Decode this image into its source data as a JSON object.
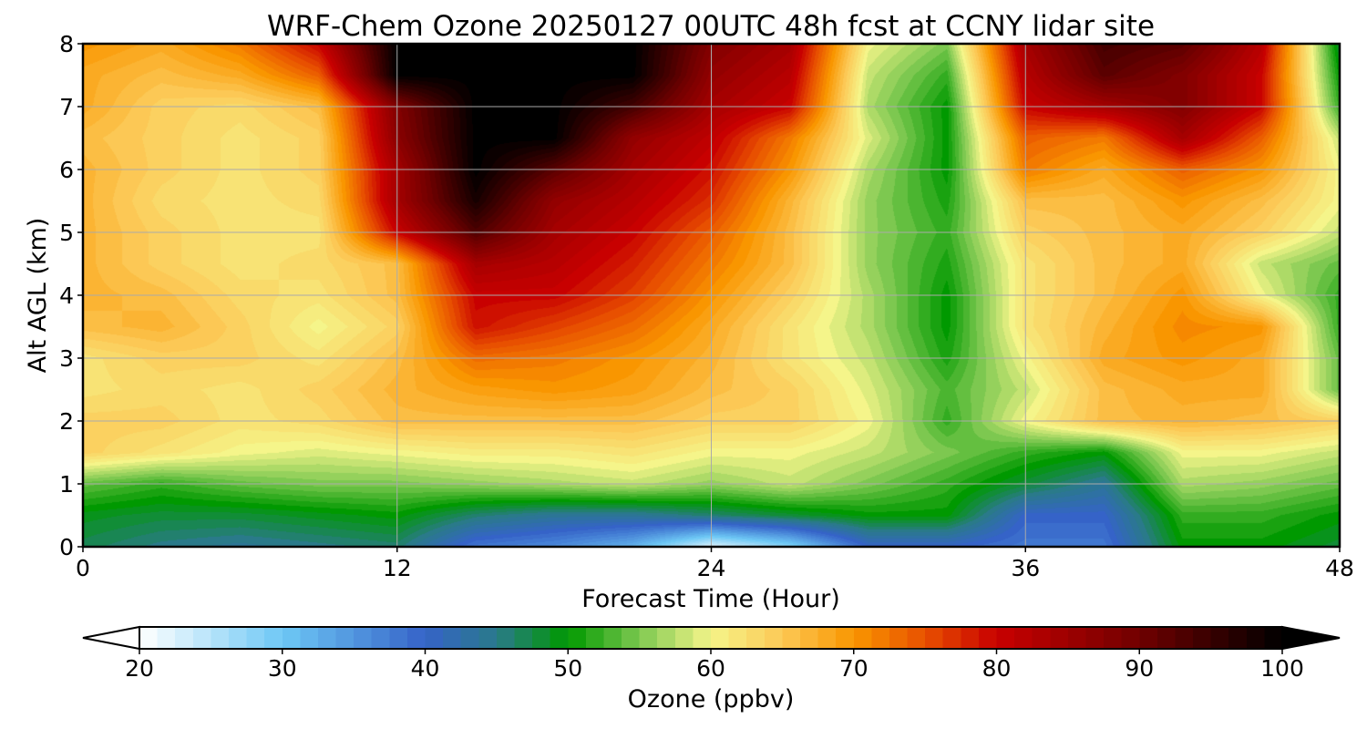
{
  "chart_data": {
    "type": "heatmap",
    "title": "WRF-Chem Ozone  20250127 00UTC 48h fcst at CCNY lidar site",
    "xlabel": "Forecast Time (Hour)",
    "ylabel": "Alt AGL (km)",
    "xlim": [
      0,
      48
    ],
    "ylim": [
      0,
      8
    ],
    "xticks": [
      0,
      12,
      24,
      36,
      48
    ],
    "yticks": [
      0,
      1,
      2,
      3,
      4,
      5,
      6,
      7,
      8
    ],
    "grid": true,
    "colorbar": {
      "label": "Ozone  (ppbv)",
      "ticks": [
        20,
        30,
        40,
        50,
        60,
        70,
        80,
        90,
        100
      ],
      "range": [
        20,
        100
      ],
      "extend": "both",
      "orientation": "horizontal",
      "placement": "bottom",
      "colors": [
        {
          "value": 20,
          "color": "#ffffff"
        },
        {
          "value": 30,
          "color": "#6ec8f5"
        },
        {
          "value": 40,
          "color": "#3563c8"
        },
        {
          "value": 45,
          "color": "#2a7a8a"
        },
        {
          "value": 50,
          "color": "#009900"
        },
        {
          "value": 55,
          "color": "#7dc850"
        },
        {
          "value": 60,
          "color": "#f5f58a"
        },
        {
          "value": 65,
          "color": "#fcc855"
        },
        {
          "value": 70,
          "color": "#f99600"
        },
        {
          "value": 75,
          "color": "#e85000"
        },
        {
          "value": 80,
          "color": "#c80000"
        },
        {
          "value": 90,
          "color": "#700000"
        },
        {
          "value": 100,
          "color": "#000000"
        }
      ]
    },
    "x": [
      0,
      3,
      6,
      9,
      12,
      15,
      18,
      21,
      24,
      27,
      30,
      33,
      36,
      39,
      42,
      45,
      48
    ],
    "y": [
      0,
      0.5,
      1,
      1.5,
      2,
      2.5,
      3,
      3.5,
      4,
      4.5,
      5,
      5.5,
      6,
      6.5,
      7,
      7.5,
      8
    ],
    "z": [
      [
        47,
        45,
        44,
        45,
        46,
        38,
        36,
        32,
        22,
        28,
        40,
        40,
        38,
        38,
        50,
        50,
        48
      ],
      [
        49,
        48,
        48,
        49,
        50,
        46,
        44,
        44,
        46,
        48,
        50,
        50,
        40,
        40,
        52,
        52,
        50
      ],
      [
        54,
        52,
        54,
        55,
        55,
        56,
        57,
        58,
        56,
        58,
        55,
        52,
        48,
        44,
        57,
        56,
        54
      ],
      [
        64,
        62,
        60,
        59,
        60,
        61,
        61,
        62,
        60,
        60,
        58,
        55,
        52,
        50,
        60,
        60,
        58
      ],
      [
        64,
        64,
        62,
        63,
        66,
        66,
        66,
        66,
        64,
        64,
        60,
        52,
        60,
        66,
        67,
        66,
        64
      ],
      [
        62,
        63,
        62,
        64,
        67,
        69,
        70,
        69,
        66,
        64,
        59,
        53,
        58,
        66,
        68,
        68,
        54
      ],
      [
        62,
        64,
        64,
        62,
        66,
        73,
        72,
        70,
        67,
        62,
        58,
        51,
        60,
        68,
        70,
        68,
        54
      ],
      [
        66,
        67,
        64,
        60,
        64,
        79,
        76,
        73,
        68,
        62,
        57,
        50,
        62,
        67,
        71,
        70,
        52
      ],
      [
        67,
        66,
        63,
        62,
        66,
        80,
        80,
        76,
        70,
        64,
        57,
        50,
        62,
        66,
        70,
        60,
        52
      ],
      [
        67,
        64,
        62,
        63,
        66,
        84,
        82,
        78,
        72,
        66,
        56,
        51,
        62,
        66,
        68,
        58,
        54
      ],
      [
        67,
        64,
        62,
        62,
        80,
        93,
        84,
        80,
        74,
        66,
        56,
        52,
        64,
        66,
        68,
        64,
        58
      ],
      [
        67,
        63,
        62,
        63,
        84,
        98,
        86,
        82,
        77,
        67,
        56,
        51,
        66,
        66,
        70,
        66,
        60
      ],
      [
        67,
        64,
        62,
        64,
        84,
        100,
        92,
        84,
        79,
        70,
        57,
        50,
        72,
        68,
        74,
        70,
        60
      ],
      [
        66,
        64,
        62,
        64,
        87,
        100,
        100,
        86,
        81,
        72,
        59,
        50,
        74,
        72,
        84,
        74,
        58
      ],
      [
        68,
        64,
        63,
        66,
        88,
        100,
        100,
        94,
        84,
        80,
        57,
        50,
        80,
        84,
        88,
        80,
        52
      ],
      [
        68,
        66,
        68,
        74,
        100,
        100,
        100,
        100,
        86,
        82,
        58,
        52,
        82,
        92,
        88,
        80,
        50
      ],
      [
        70,
        68,
        72,
        80,
        100,
        100,
        100,
        100,
        88,
        84,
        60,
        55,
        84,
        94,
        92,
        82,
        48
      ]
    ]
  }
}
